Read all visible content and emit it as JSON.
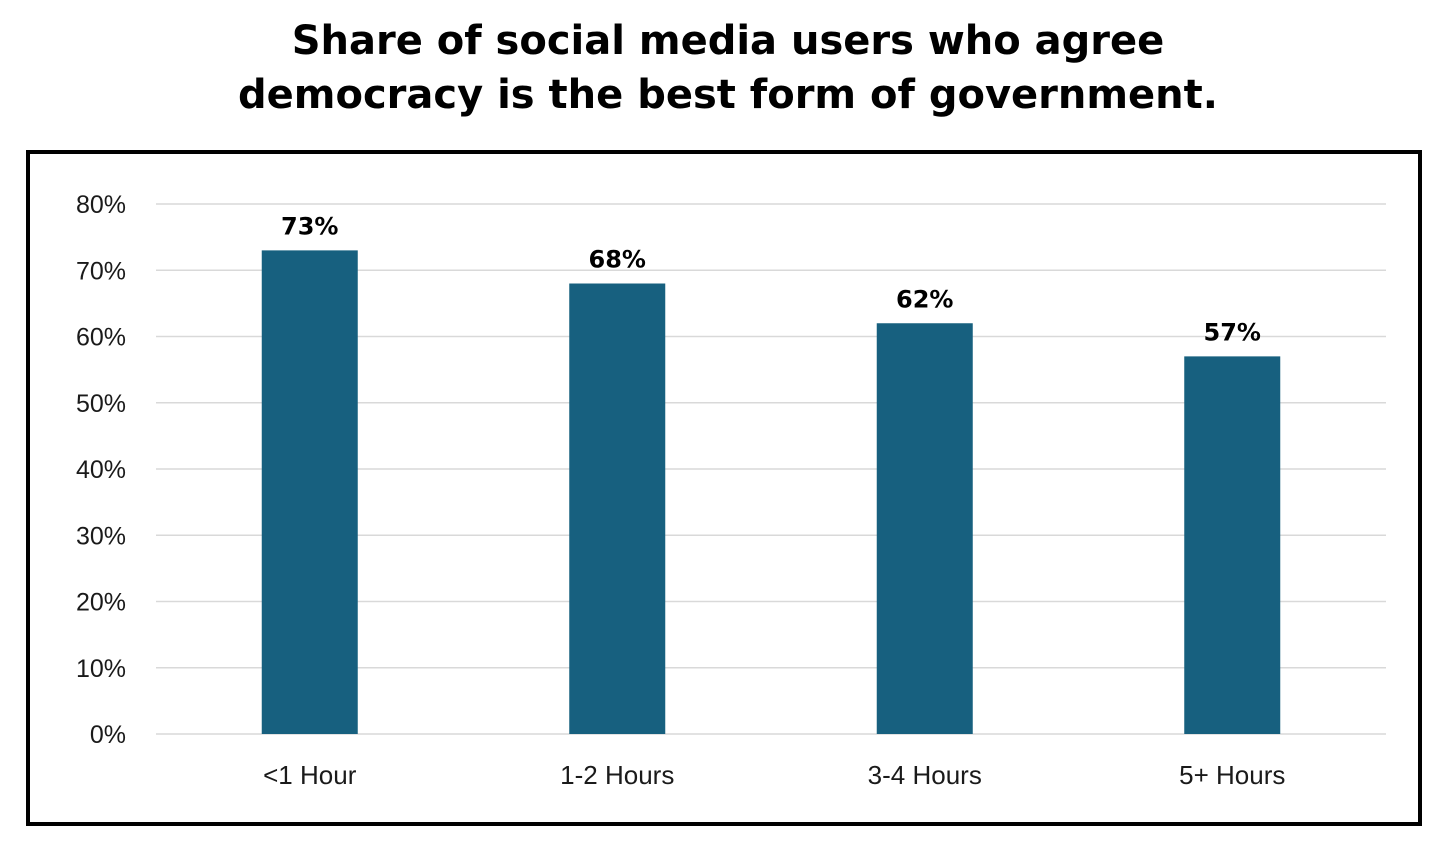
{
  "chart_data": {
    "type": "bar",
    "title_lines": [
      "Share of social media users who agree",
      "democracy is the best form of government."
    ],
    "categories": [
      "<1 Hour",
      "1-2 Hours",
      "3-4 Hours",
      "5+ Hours"
    ],
    "values": [
      73,
      68,
      62,
      57
    ],
    "data_labels": [
      "73%",
      "68%",
      "62%",
      "57%"
    ],
    "yticks": [
      0,
      10,
      20,
      30,
      40,
      50,
      60,
      70,
      80
    ],
    "ytick_labels": [
      "0%",
      "10%",
      "20%",
      "30%",
      "40%",
      "50%",
      "60%",
      "70%",
      "80%"
    ],
    "ylim": [
      0,
      80
    ],
    "grid": true,
    "legend": "none",
    "bar_color": "#17607f",
    "grid_color": "#d9d9d9",
    "xlabel": "",
    "ylabel": ""
  }
}
